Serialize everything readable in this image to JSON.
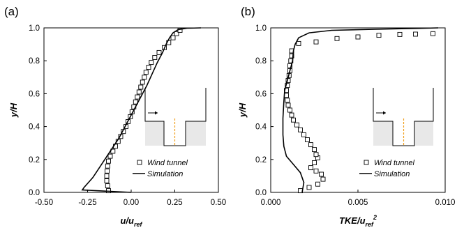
{
  "chart_data": [
    {
      "type": "scatter",
      "panel_label": "(a)",
      "xlabel_main": "u/u",
      "xlabel_sub": "ref",
      "ylabel": "y/H",
      "xlim": [
        -0.5,
        0.5
      ],
      "ylim": [
        0,
        1.0
      ],
      "xticks": [
        "-0.50",
        "-0.25",
        "0.00",
        "0.25",
        "0.50"
      ],
      "yticks": [
        "0.0",
        "0.2",
        "0.4",
        "0.6",
        "0.8",
        "1.0"
      ],
      "legend": [
        "Wind tunnel",
        "Simulation"
      ],
      "legend_position": "right",
      "series": [
        {
          "name": "Wind tunnel",
          "kind": "markers",
          "x": [
            -0.13,
            -0.135,
            -0.14,
            -0.14,
            -0.138,
            -0.135,
            -0.13,
            -0.12,
            -0.105,
            -0.09,
            -0.075,
            -0.06,
            -0.045,
            -0.03,
            -0.018,
            -0.005,
            0.005,
            0.015,
            0.025,
            0.035,
            0.045,
            0.055,
            0.065,
            0.075,
            0.085,
            0.1,
            0.115,
            0.135,
            0.16,
            0.19,
            0.215,
            0.24,
            0.26,
            0.28
          ],
          "y": [
            0.01,
            0.04,
            0.07,
            0.1,
            0.13,
            0.16,
            0.19,
            0.22,
            0.25,
            0.28,
            0.31,
            0.34,
            0.37,
            0.4,
            0.43,
            0.46,
            0.49,
            0.52,
            0.55,
            0.58,
            0.61,
            0.64,
            0.67,
            0.7,
            0.73,
            0.76,
            0.79,
            0.82,
            0.85,
            0.88,
            0.91,
            0.94,
            0.965,
            0.985
          ]
        },
        {
          "name": "Simulation",
          "kind": "line",
          "x": [
            0.0,
            -0.1,
            -0.2,
            -0.28,
            -0.27,
            -0.22,
            -0.17,
            -0.12,
            -0.07,
            -0.03,
            0.01,
            0.05,
            0.09,
            0.12,
            0.15,
            0.18,
            0.2,
            0.22,
            0.24,
            0.27,
            0.32,
            0.4
          ],
          "y": [
            0.0,
            0.005,
            0.01,
            0.015,
            0.03,
            0.09,
            0.17,
            0.25,
            0.33,
            0.41,
            0.49,
            0.57,
            0.65,
            0.72,
            0.79,
            0.85,
            0.9,
            0.94,
            0.97,
            0.99,
            0.998,
            1.0
          ]
        }
      ]
    },
    {
      "type": "scatter",
      "panel_label": "(b)",
      "xlabel_main": "TKE/u",
      "xlabel_sub": "ref",
      "xlabel_sup": "2",
      "ylabel": "y/H",
      "xlim": [
        0,
        0.01
      ],
      "ylim": [
        0,
        1.0
      ],
      "xticks": [
        "0.000",
        "0.005",
        "0.010"
      ],
      "yticks": [
        "0.0",
        "0.2",
        "0.4",
        "0.6",
        "0.8",
        "1.0"
      ],
      "legend": [
        "Wind tunnel",
        "Simulation"
      ],
      "legend_position": "right",
      "series": [
        {
          "name": "Wind tunnel",
          "kind": "markers",
          "x": [
            0.0017,
            0.0022,
            0.0027,
            0.003,
            0.0029,
            0.0026,
            0.0023,
            0.0025,
            0.0027,
            0.0026,
            0.0025,
            0.0023,
            0.0021,
            0.0019,
            0.0017,
            0.0015,
            0.0013,
            0.0012,
            0.0011,
            0.001,
            0.00095,
            0.0009,
            0.0009,
            0.00095,
            0.001,
            0.00105,
            0.0011,
            0.0011,
            0.00115,
            0.0012,
            0.0012,
            0.0016,
            0.0026,
            0.0038,
            0.005,
            0.0062,
            0.0074,
            0.0083,
            0.0093
          ],
          "y": [
            0.01,
            0.03,
            0.05,
            0.08,
            0.11,
            0.13,
            0.15,
            0.18,
            0.21,
            0.23,
            0.26,
            0.29,
            0.32,
            0.35,
            0.38,
            0.41,
            0.44,
            0.47,
            0.5,
            0.53,
            0.56,
            0.59,
            0.62,
            0.65,
            0.68,
            0.71,
            0.74,
            0.77,
            0.8,
            0.83,
            0.86,
            0.905,
            0.915,
            0.935,
            0.945,
            0.955,
            0.96,
            0.962,
            0.965
          ]
        },
        {
          "name": "Simulation",
          "kind": "line",
          "x": [
            0.0018,
            0.0019,
            0.0017,
            0.0013,
            0.0009,
            0.00075,
            0.0007,
            0.0007,
            0.00075,
            0.0008,
            0.00095,
            0.0011,
            0.00125,
            0.0013,
            0.0014,
            0.0016,
            0.0022,
            0.0035,
            0.006,
            0.0085,
            0.0096
          ],
          "y": [
            0.0,
            0.06,
            0.12,
            0.17,
            0.22,
            0.28,
            0.35,
            0.45,
            0.55,
            0.62,
            0.68,
            0.74,
            0.8,
            0.86,
            0.9,
            0.94,
            0.97,
            0.985,
            0.992,
            0.997,
            1.0
          ]
        }
      ]
    }
  ]
}
